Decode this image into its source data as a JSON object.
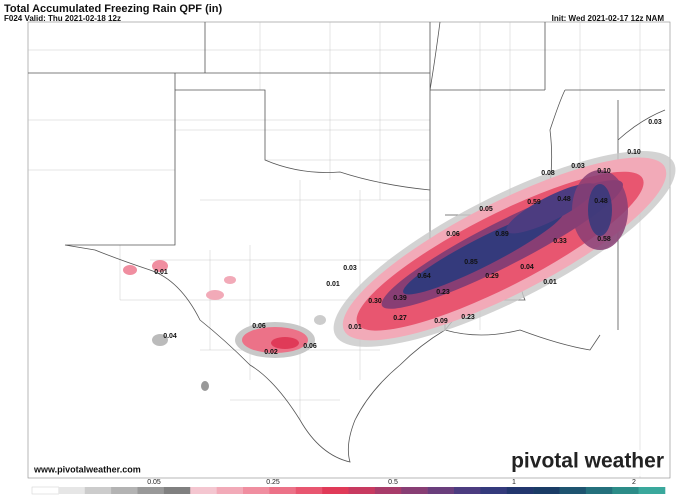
{
  "header": {
    "title": "Total Accumulated Freezing Rain QPF (in)",
    "valid": "F024 Valid: Thu 2021-02-18 12z",
    "init": "Init: Wed 2021-02-17 12z NAM"
  },
  "map_labels": [
    "0.03",
    "0.10",
    "0.08",
    "0.03",
    "0.10",
    "0.05",
    "0.59",
    "0.48",
    "0.48",
    "0.06",
    "0.89",
    "0.33",
    "0.58",
    "0.03",
    "0.85",
    "0.64",
    "0.04",
    "0.29",
    "0.01",
    "0.01",
    "0.01",
    "0.23",
    "0.30",
    "0.39",
    "0.27",
    "0.23",
    "0.09",
    "0.01",
    "0.06",
    "0.04",
    "0.06",
    "0.02"
  ],
  "footer": {
    "website": "www.pivotalweather.com",
    "logo": "pivotal weather"
  },
  "colorbar": {
    "ticks": [
      0.05,
      0.25,
      0.5,
      1,
      2
    ],
    "colors": [
      "#ffffff",
      "#e6e6e6",
      "#cccccc",
      "#b3b3b3",
      "#999999",
      "#808080",
      "#f4c6d0",
      "#f2aab8",
      "#f08ea0",
      "#ec7288",
      "#e85670",
      "#e03a58",
      "#c83a60",
      "#a83c6a",
      "#883e74",
      "#6a3e7c",
      "#4c3c80",
      "#343a7c",
      "#22366e",
      "#1a3c66",
      "#1e5470",
      "#24707c",
      "#2c8c88",
      "#3aa89c"
    ]
  }
}
